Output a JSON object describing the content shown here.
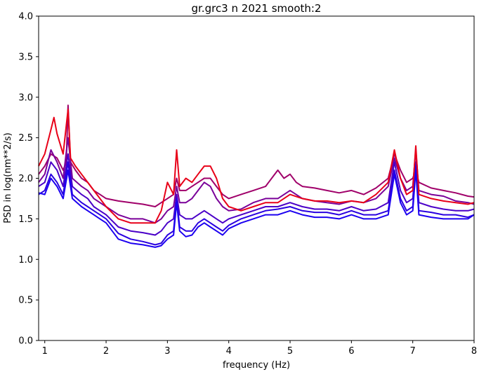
{
  "chart_data": {
    "type": "line",
    "title": "gr.grc3 n 2021 smooth:2",
    "xlabel": "frequency (Hz)",
    "ylabel": "PSD in log(nm**2/s)",
    "xlim": [
      0.9,
      8.0
    ],
    "ylim": [
      0.0,
      4.0
    ],
    "xticks": [
      1,
      2,
      3,
      4,
      5,
      6,
      7,
      8
    ],
    "xtick_labels": [
      "1",
      "2",
      "3",
      "4",
      "5",
      "6",
      "7",
      "8"
    ],
    "yticks": [
      0.0,
      0.5,
      1.0,
      1.5,
      2.0,
      2.5,
      3.0,
      3.5,
      4.0
    ],
    "ytick_labels": [
      "0.0",
      "0.5",
      "1.0",
      "1.5",
      "2.0",
      "2.5",
      "3.0",
      "3.5",
      "4.0"
    ],
    "grid": false,
    "legend": "none",
    "series": [
      {
        "color": "#a0006a",
        "x": [
          0.9,
          1.0,
          1.1,
          1.2,
          1.3,
          1.35,
          1.38,
          1.42,
          1.5,
          1.6,
          1.7,
          1.8,
          1.9,
          2.0,
          2.2,
          2.4,
          2.6,
          2.8,
          2.9,
          3.0,
          3.1,
          3.15,
          3.2,
          3.3,
          3.4,
          3.5,
          3.6,
          3.7,
          3.8,
          3.9,
          4.0,
          4.2,
          4.4,
          4.6,
          4.7,
          4.8,
          4.9,
          5.0,
          5.1,
          5.2,
          5.4,
          5.6,
          5.8,
          6.0,
          6.2,
          6.4,
          6.6,
          6.7,
          6.8,
          6.9,
          7.0,
          7.05,
          7.1,
          7.3,
          7.5,
          7.7,
          7.9,
          8.0
        ],
        "y": [
          2.05,
          2.15,
          2.3,
          2.25,
          2.1,
          2.2,
          2.9,
          2.2,
          2.1,
          2.0,
          1.95,
          1.85,
          1.8,
          1.75,
          1.72,
          1.7,
          1.68,
          1.65,
          1.7,
          1.75,
          1.8,
          2.0,
          1.85,
          1.85,
          1.9,
          1.95,
          2.0,
          2.0,
          1.9,
          1.8,
          1.75,
          1.8,
          1.85,
          1.9,
          2.0,
          2.1,
          2.0,
          2.05,
          1.95,
          1.9,
          1.88,
          1.85,
          1.82,
          1.85,
          1.8,
          1.88,
          2.0,
          2.3,
          2.1,
          1.95,
          2.0,
          2.1,
          1.95,
          1.88,
          1.85,
          1.82,
          1.78,
          1.77
        ]
      },
      {
        "color": "#7a0099",
        "x": [
          0.9,
          1.0,
          1.1,
          1.2,
          1.3,
          1.38,
          1.45,
          1.6,
          1.7,
          1.8,
          1.9,
          2.0,
          2.2,
          2.4,
          2.6,
          2.8,
          2.9,
          3.0,
          3.1,
          3.15,
          3.2,
          3.3,
          3.4,
          3.5,
          3.6,
          3.7,
          3.8,
          3.9,
          4.0,
          4.2,
          4.4,
          4.6,
          4.8,
          5.0,
          5.2,
          5.4,
          5.6,
          5.8,
          6.0,
          6.2,
          6.4,
          6.6,
          6.7,
          6.8,
          6.9,
          7.0,
          7.05,
          7.1,
          7.3,
          7.5,
          7.7,
          7.9,
          8.0
        ],
        "y": [
          1.95,
          2.05,
          2.35,
          2.2,
          2.0,
          2.5,
          2.0,
          1.9,
          1.85,
          1.75,
          1.7,
          1.65,
          1.55,
          1.5,
          1.5,
          1.45,
          1.5,
          1.6,
          1.65,
          1.9,
          1.7,
          1.7,
          1.75,
          1.85,
          1.95,
          1.9,
          1.75,
          1.65,
          1.6,
          1.62,
          1.7,
          1.75,
          1.75,
          1.85,
          1.75,
          1.72,
          1.7,
          1.68,
          1.72,
          1.7,
          1.75,
          1.9,
          2.25,
          2.0,
          1.85,
          1.9,
          2.35,
          1.85,
          1.8,
          1.78,
          1.72,
          1.7,
          1.68
        ]
      },
      {
        "color": "#4a00c8",
        "x": [
          0.9,
          1.0,
          1.1,
          1.2,
          1.3,
          1.38,
          1.45,
          1.6,
          1.7,
          1.8,
          1.9,
          2.0,
          2.2,
          2.4,
          2.6,
          2.8,
          2.9,
          3.0,
          3.1,
          3.15,
          3.2,
          3.3,
          3.4,
          3.5,
          3.6,
          3.7,
          3.8,
          3.9,
          4.0,
          4.2,
          4.4,
          4.6,
          4.8,
          5.0,
          5.2,
          5.4,
          5.6,
          5.8,
          6.0,
          6.2,
          6.4,
          6.6,
          6.7,
          6.8,
          6.9,
          7.0,
          7.05,
          7.1,
          7.3,
          7.5,
          7.7,
          7.9,
          8.0
        ],
        "y": [
          1.9,
          1.95,
          2.2,
          2.1,
          1.9,
          2.3,
          1.9,
          1.8,
          1.75,
          1.65,
          1.6,
          1.55,
          1.4,
          1.35,
          1.33,
          1.3,
          1.35,
          1.45,
          1.5,
          1.8,
          1.55,
          1.5,
          1.5,
          1.55,
          1.6,
          1.55,
          1.5,
          1.45,
          1.5,
          1.55,
          1.6,
          1.65,
          1.65,
          1.7,
          1.65,
          1.62,
          1.62,
          1.6,
          1.65,
          1.6,
          1.62,
          1.7,
          2.2,
          1.85,
          1.7,
          1.75,
          2.2,
          1.7,
          1.65,
          1.62,
          1.6,
          1.6,
          1.62
        ]
      },
      {
        "color": "#2a00e0",
        "x": [
          0.9,
          1.0,
          1.1,
          1.2,
          1.3,
          1.38,
          1.45,
          1.6,
          1.7,
          1.8,
          1.9,
          2.0,
          2.2,
          2.4,
          2.6,
          2.8,
          2.9,
          3.0,
          3.1,
          3.15,
          3.2,
          3.3,
          3.4,
          3.5,
          3.6,
          3.7,
          3.8,
          3.9,
          4.0,
          4.2,
          4.4,
          4.6,
          4.8,
          5.0,
          5.2,
          5.4,
          5.6,
          5.8,
          6.0,
          6.2,
          6.4,
          6.6,
          6.7,
          6.8,
          6.9,
          7.0,
          7.05,
          7.1,
          7.3,
          7.5,
          7.7,
          7.9,
          8.0
        ],
        "y": [
          1.8,
          1.85,
          2.05,
          1.95,
          1.8,
          2.2,
          1.8,
          1.7,
          1.65,
          1.6,
          1.55,
          1.5,
          1.32,
          1.25,
          1.22,
          1.18,
          1.2,
          1.3,
          1.35,
          1.75,
          1.4,
          1.35,
          1.35,
          1.45,
          1.5,
          1.45,
          1.4,
          1.35,
          1.42,
          1.5,
          1.55,
          1.6,
          1.62,
          1.65,
          1.6,
          1.58,
          1.58,
          1.55,
          1.6,
          1.55,
          1.55,
          1.6,
          2.1,
          1.75,
          1.6,
          1.65,
          2.15,
          1.6,
          1.58,
          1.55,
          1.55,
          1.52,
          1.55
        ]
      },
      {
        "color": "#1c00f0",
        "x": [
          0.9,
          1.0,
          1.1,
          1.2,
          1.3,
          1.38,
          1.45,
          1.6,
          1.7,
          1.8,
          1.9,
          2.0,
          2.2,
          2.4,
          2.6,
          2.8,
          2.9,
          3.0,
          3.1,
          3.15,
          3.2,
          3.3,
          3.4,
          3.5,
          3.6,
          3.7,
          3.8,
          3.9,
          4.0,
          4.2,
          4.4,
          4.6,
          4.8,
          5.0,
          5.2,
          5.4,
          5.6,
          5.8,
          6.0,
          6.2,
          6.4,
          6.6,
          6.7,
          6.8,
          6.9,
          7.0,
          7.05,
          7.1,
          7.3,
          7.5,
          7.7,
          7.9,
          8.0
        ],
        "y": [
          1.82,
          1.8,
          2.0,
          1.9,
          1.75,
          2.1,
          1.75,
          1.65,
          1.6,
          1.55,
          1.5,
          1.45,
          1.25,
          1.2,
          1.18,
          1.15,
          1.17,
          1.25,
          1.3,
          1.7,
          1.35,
          1.28,
          1.3,
          1.4,
          1.45,
          1.4,
          1.35,
          1.3,
          1.38,
          1.45,
          1.5,
          1.55,
          1.55,
          1.6,
          1.55,
          1.52,
          1.52,
          1.5,
          1.55,
          1.5,
          1.5,
          1.55,
          2.05,
          1.7,
          1.55,
          1.6,
          2.1,
          1.55,
          1.52,
          1.5,
          1.5,
          1.5,
          1.55
        ]
      },
      {
        "color": "#e80018",
        "x": [
          0.9,
          1.0,
          1.1,
          1.15,
          1.2,
          1.3,
          1.38,
          1.42,
          1.5,
          1.6,
          1.7,
          1.8,
          1.9,
          2.0,
          2.2,
          2.4,
          2.6,
          2.8,
          2.9,
          3.0,
          3.1,
          3.15,
          3.2,
          3.3,
          3.4,
          3.5,
          3.6,
          3.7,
          3.8,
          3.9,
          4.0,
          4.2,
          4.4,
          4.6,
          4.8,
          5.0,
          5.2,
          5.4,
          5.6,
          5.8,
          6.0,
          6.2,
          6.4,
          6.6,
          6.7,
          6.8,
          6.9,
          7.0,
          7.05,
          7.1,
          7.3,
          7.5,
          7.7,
          7.9,
          8.0
        ],
        "y": [
          2.15,
          2.3,
          2.6,
          2.75,
          2.55,
          2.3,
          2.85,
          2.25,
          2.15,
          2.05,
          1.95,
          1.85,
          1.75,
          1.65,
          1.5,
          1.45,
          1.45,
          1.45,
          1.6,
          1.95,
          1.8,
          2.35,
          1.9,
          2.0,
          1.95,
          2.05,
          2.15,
          2.15,
          2.0,
          1.75,
          1.65,
          1.6,
          1.65,
          1.7,
          1.7,
          1.8,
          1.75,
          1.72,
          1.72,
          1.7,
          1.72,
          1.7,
          1.8,
          1.95,
          2.35,
          2.0,
          1.8,
          1.85,
          2.4,
          1.8,
          1.75,
          1.72,
          1.7,
          1.68,
          1.7
        ]
      }
    ]
  }
}
